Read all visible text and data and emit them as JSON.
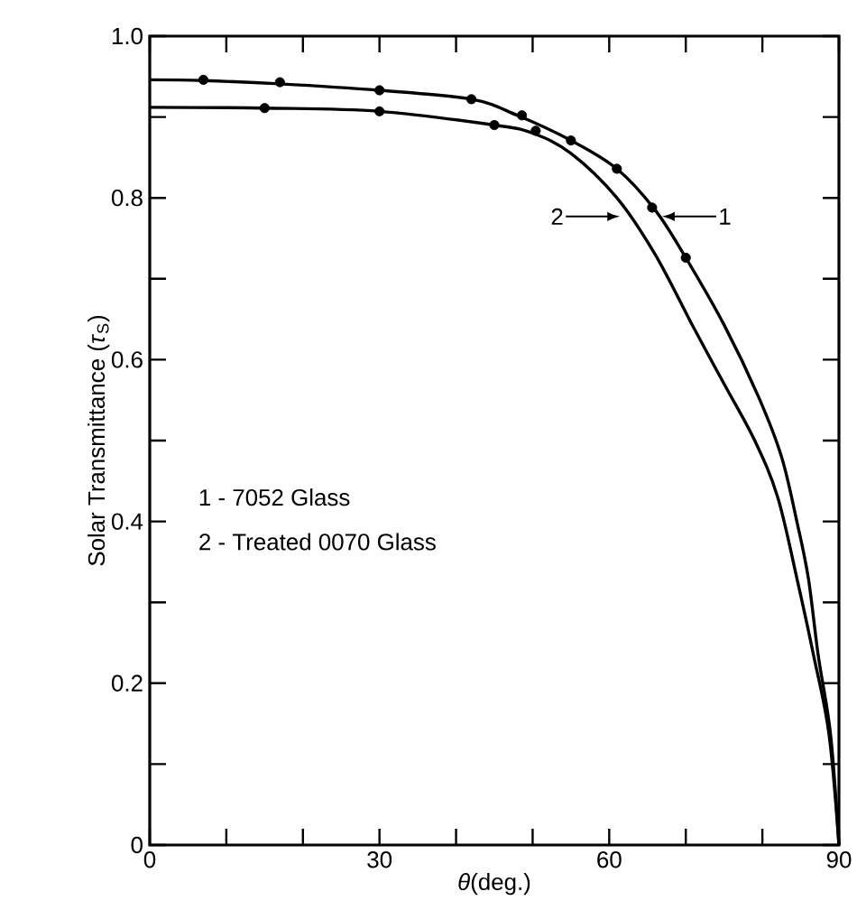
{
  "chart_data": {
    "type": "line",
    "xlabel": "*θ*(deg.)",
    "ylabel": "Solar Transmittance (*τ*$_{S}$)",
    "xlim": [
      0,
      90
    ],
    "ylim": [
      0,
      1.0
    ],
    "xticks": [
      0,
      {
        "value": 10,
        "label": null
      },
      {
        "value": 20,
        "label": null
      },
      30,
      {
        "value": 40,
        "label": null
      },
      {
        "value": 50,
        "label": null
      },
      60,
      {
        "value": 70,
        "label": null
      },
      {
        "value": 80,
        "label": null
      },
      90
    ],
    "yticks": [
      0,
      {
        "value": 0.1,
        "label": null
      },
      0.2,
      {
        "value": 0.3,
        "label": null
      },
      0.4,
      {
        "value": 0.5,
        "label": null
      },
      0.6,
      {
        "value": 0.7,
        "label": null
      },
      0.8,
      {
        "value": 0.9,
        "label": null
      },
      {
        "value": 1.0,
        "label": "1.0"
      }
    ],
    "grid": false,
    "marker": "circle",
    "series": [
      {
        "color": "#000000",
        "marker": "none",
        "x": [
          0,
          7,
          17,
          30,
          42,
          48,
          55,
          61,
          66,
          70,
          75,
          79.5,
          82.5,
          84.5,
          86,
          87.3,
          88.9,
          90
        ],
        "values": [
          0.946,
          0.945,
          0.941,
          0.933,
          0.922,
          0.902,
          0.871,
          0.836,
          0.785,
          0.726,
          0.643,
          0.554,
          0.48,
          0.4,
          0.33,
          0.234,
          0.137,
          0
        ]
      },
      {
        "color": "#000000",
        "marker": "none",
        "x": [
          0,
          15,
          30,
          45,
          50,
          55,
          61,
          66,
          71,
          75,
          79,
          82,
          84.5,
          86.7,
          88.7,
          90
        ],
        "values": [
          0.912,
          0.911,
          0.907,
          0.89,
          0.88,
          0.855,
          0.8,
          0.73,
          0.64,
          0.57,
          0.5,
          0.43,
          0.33,
          0.234,
          0.137,
          0
        ]
      },
      {
        "type": "scatter",
        "color": "#000000",
        "x": [
          7,
          17,
          30,
          42,
          48.6,
          55,
          61,
          65.6,
          70
        ],
        "values": [
          0.946,
          0.943,
          0.933,
          0.922,
          0.902,
          0.871,
          0.836,
          0.788,
          0.726
        ]
      },
      {
        "type": "scatter",
        "color": "#000000",
        "x": [
          15,
          30,
          45,
          50.4
        ],
        "values": [
          0.911,
          0.907,
          0.89,
          0.883
        ]
      }
    ],
    "annotations": [
      {
        "text": "1",
        "x": 66.9,
        "y": 0.777
      },
      {
        "text": "2",
        "x": 61.4,
        "y": 0.777
      },
      "1 - 7052 Glass",
      "2 - Treated 0070 Glass"
    ]
  }
}
